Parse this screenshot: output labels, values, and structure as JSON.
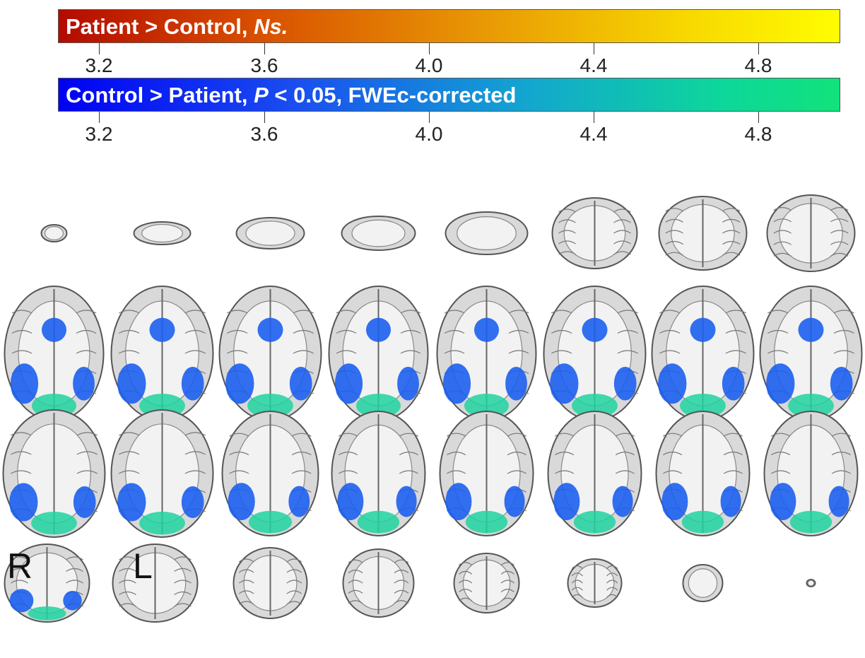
{
  "colorbars": [
    {
      "label_parts": [
        "Patient > Control, ",
        "Ns."
      ],
      "ticks": [
        "3.2",
        "3.6",
        "4.0",
        "4.4",
        "4.8"
      ],
      "colors": [
        "#b40a00",
        "#fffd00"
      ]
    },
    {
      "label_parts": [
        "Control > Patient, ",
        "P",
        " < 0.05, FWEc-corrected"
      ],
      "ticks": [
        "3.2",
        "3.6",
        "4.0",
        "4.4",
        "4.8"
      ],
      "colors": [
        "#0000f5",
        "#12e27b"
      ]
    }
  ],
  "orientation": {
    "right": "R",
    "left": "L"
  },
  "brain_slices": {
    "rows": 4,
    "columns": 8,
    "tissue_color": "#d9d9d9",
    "activation_color": "#1c5ff0",
    "activation_peak_color": "#1fd3a0"
  }
}
